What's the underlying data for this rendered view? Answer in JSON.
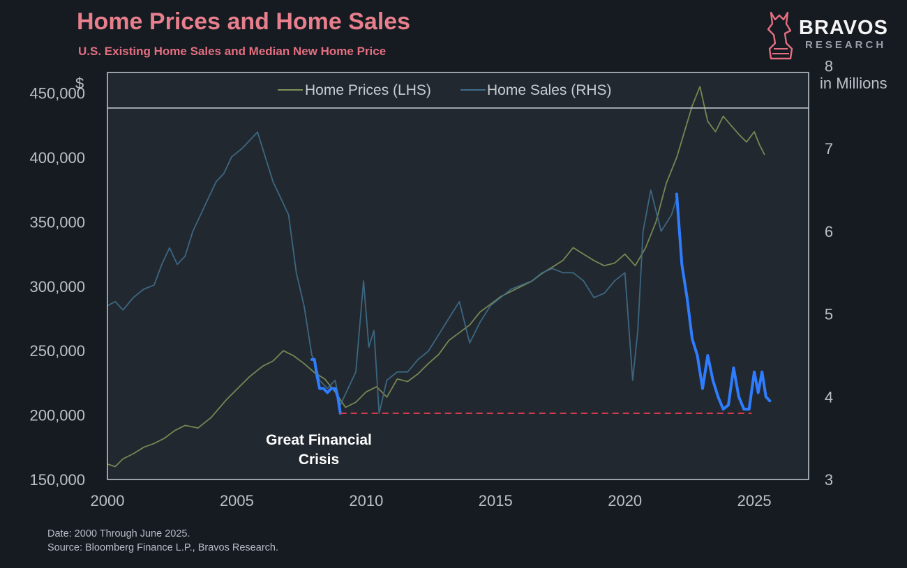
{
  "header": {
    "title": "Home Prices and Home Sales",
    "subtitle": "U.S. Existing Home Sales and Median New Home Price"
  },
  "logo": {
    "name": "BRAVOS",
    "sub": "RESEARCH",
    "icon": "bull-knight-icon"
  },
  "footer": {
    "date_note": "Date: 2000 Through June 2025.",
    "source_note": "Source: Bloomberg Finance L.P., Bravos Research."
  },
  "colors": {
    "background": "#161a21",
    "plot_bg": "#222830",
    "frame": "#c7ccd2",
    "axis_text": "#bcc1c8",
    "title": "#e77f8c",
    "prices": "#7f9156",
    "sales": "#3f6e8a",
    "highlight": "#2f7dff",
    "dashed": "#d23a4e"
  },
  "chart_data": {
    "type": "line",
    "title": "Home Prices and Home Sales",
    "subtitle": "U.S. Existing Home Sales and Median New Home Price",
    "left_axis": {
      "label": "$",
      "min": 150000,
      "max": 466000,
      "ticks": [
        "150,000",
        "200,000",
        "250,000",
        "300,000",
        "350,000",
        "400,000",
        "450,000"
      ],
      "tick_values": [
        150000,
        200000,
        250000,
        300000,
        350000,
        400000,
        450000
      ]
    },
    "right_axis": {
      "label": "in Millions",
      "min": 3,
      "max": 7.92,
      "ticks": [
        "3",
        "4",
        "5",
        "6",
        "7",
        "8"
      ],
      "tick_values": [
        3,
        4,
        5,
        6,
        7,
        8
      ]
    },
    "x_axis": {
      "min": 2000,
      "max": 2027.1,
      "ticks": [
        "2000",
        "2005",
        "2010",
        "2015",
        "2020",
        "2025"
      ],
      "tick_values": [
        2000,
        2005,
        2010,
        2015,
        2020,
        2025
      ]
    },
    "legend": {
      "position": "top-center",
      "items": [
        "Home Prices (LHS)",
        "Home Sales (RHS)"
      ]
    },
    "series": [
      {
        "name": "Home Prices (LHS)",
        "axis": "left",
        "points": [
          [
            2000.0,
            162000
          ],
          [
            2000.3,
            160000
          ],
          [
            2000.6,
            166000
          ],
          [
            2001.0,
            170000
          ],
          [
            2001.4,
            175000
          ],
          [
            2001.8,
            178000
          ],
          [
            2002.2,
            182000
          ],
          [
            2002.6,
            188000
          ],
          [
            2003.0,
            192000
          ],
          [
            2003.5,
            190000
          ],
          [
            2004.0,
            198000
          ],
          [
            2004.3,
            205000
          ],
          [
            2004.6,
            212000
          ],
          [
            2005.0,
            220000
          ],
          [
            2005.5,
            230000
          ],
          [
            2006.0,
            238000
          ],
          [
            2006.4,
            242000
          ],
          [
            2006.8,
            250000
          ],
          [
            2007.2,
            246000
          ],
          [
            2007.6,
            240000
          ],
          [
            2008.0,
            233000
          ],
          [
            2008.4,
            228000
          ],
          [
            2008.8,
            218000
          ],
          [
            2009.2,
            206000
          ],
          [
            2009.6,
            210000
          ],
          [
            2010.0,
            218000
          ],
          [
            2010.4,
            222000
          ],
          [
            2010.8,
            214000
          ],
          [
            2011.2,
            228000
          ],
          [
            2011.6,
            226000
          ],
          [
            2012.0,
            232000
          ],
          [
            2012.4,
            240000
          ],
          [
            2012.8,
            247000
          ],
          [
            2013.2,
            258000
          ],
          [
            2013.6,
            264000
          ],
          [
            2014.0,
            270000
          ],
          [
            2014.4,
            280000
          ],
          [
            2014.8,
            286000
          ],
          [
            2015.2,
            292000
          ],
          [
            2015.6,
            296000
          ],
          [
            2016.0,
            300000
          ],
          [
            2016.4,
            304000
          ],
          [
            2016.8,
            310000
          ],
          [
            2017.2,
            315000
          ],
          [
            2017.6,
            320000
          ],
          [
            2018.0,
            330000
          ],
          [
            2018.4,
            325000
          ],
          [
            2018.8,
            320000
          ],
          [
            2019.2,
            316000
          ],
          [
            2019.6,
            318000
          ],
          [
            2020.0,
            325000
          ],
          [
            2020.4,
            316000
          ],
          [
            2020.8,
            330000
          ],
          [
            2021.2,
            350000
          ],
          [
            2021.6,
            380000
          ],
          [
            2022.0,
            400000
          ],
          [
            2022.3,
            420000
          ],
          [
            2022.6,
            440000
          ],
          [
            2022.9,
            455000
          ],
          [
            2023.2,
            428000
          ],
          [
            2023.5,
            420000
          ],
          [
            2023.8,
            432000
          ],
          [
            2024.1,
            425000
          ],
          [
            2024.4,
            418000
          ],
          [
            2024.7,
            412000
          ],
          [
            2025.0,
            420000
          ],
          [
            2025.2,
            410000
          ],
          [
            2025.4,
            402000
          ]
        ]
      },
      {
        "name": "Home Sales (RHS)",
        "axis": "right",
        "points": [
          [
            2000.0,
            5.1
          ],
          [
            2000.3,
            5.15
          ],
          [
            2000.6,
            5.05
          ],
          [
            2001.0,
            5.2
          ],
          [
            2001.4,
            5.3
          ],
          [
            2001.8,
            5.35
          ],
          [
            2002.1,
            5.6
          ],
          [
            2002.4,
            5.8
          ],
          [
            2002.7,
            5.6
          ],
          [
            2003.0,
            5.7
          ],
          [
            2003.3,
            6.0
          ],
          [
            2003.6,
            6.2
          ],
          [
            2003.9,
            6.4
          ],
          [
            2004.2,
            6.6
          ],
          [
            2004.5,
            6.7
          ],
          [
            2004.8,
            6.9
          ],
          [
            2005.2,
            7.0
          ],
          [
            2005.5,
            7.1
          ],
          [
            2005.8,
            7.2
          ],
          [
            2006.1,
            6.9
          ],
          [
            2006.4,
            6.6
          ],
          [
            2006.7,
            6.4
          ],
          [
            2007.0,
            6.2
          ],
          [
            2007.3,
            5.5
          ],
          [
            2007.6,
            5.1
          ],
          [
            2007.9,
            4.5
          ],
          [
            2008.0,
            4.45
          ],
          [
            2008.2,
            4.2
          ],
          [
            2008.5,
            4.1
          ],
          [
            2008.8,
            4.2
          ],
          [
            2009.0,
            3.9
          ],
          [
            2009.3,
            4.1
          ],
          [
            2009.6,
            4.3
          ],
          [
            2009.9,
            5.4
          ],
          [
            2010.1,
            4.6
          ],
          [
            2010.3,
            4.8
          ],
          [
            2010.5,
            3.8
          ],
          [
            2010.8,
            4.2
          ],
          [
            2011.2,
            4.3
          ],
          [
            2011.6,
            4.3
          ],
          [
            2012.0,
            4.45
          ],
          [
            2012.4,
            4.55
          ],
          [
            2012.8,
            4.75
          ],
          [
            2013.2,
            4.95
          ],
          [
            2013.6,
            5.15
          ],
          [
            2014.0,
            4.65
          ],
          [
            2014.4,
            4.9
          ],
          [
            2014.8,
            5.1
          ],
          [
            2015.2,
            5.2
          ],
          [
            2015.6,
            5.3
          ],
          [
            2016.0,
            5.35
          ],
          [
            2016.4,
            5.4
          ],
          [
            2016.8,
            5.5
          ],
          [
            2017.2,
            5.55
          ],
          [
            2017.6,
            5.5
          ],
          [
            2018.0,
            5.5
          ],
          [
            2018.4,
            5.4
          ],
          [
            2018.8,
            5.2
          ],
          [
            2019.2,
            5.25
          ],
          [
            2019.6,
            5.4
          ],
          [
            2020.0,
            5.5
          ],
          [
            2020.3,
            4.2
          ],
          [
            2020.5,
            4.8
          ],
          [
            2020.7,
            6.0
          ],
          [
            2021.0,
            6.5
          ],
          [
            2021.4,
            6.0
          ],
          [
            2021.8,
            6.2
          ],
          [
            2022.0,
            6.4
          ]
        ]
      },
      {
        "name": "",
        "axis": "right",
        "points": [
          [
            2007.9,
            4.45
          ],
          [
            2008.0,
            4.45
          ],
          [
            2008.1,
            4.25
          ],
          [
            2008.2,
            4.1
          ],
          [
            2008.35,
            4.1
          ],
          [
            2008.5,
            4.05
          ],
          [
            2008.65,
            4.1
          ],
          [
            2008.8,
            4.1
          ],
          [
            2008.9,
            4.0
          ],
          [
            2009.0,
            3.8
          ],
          [
            2022.0,
            6.45
          ],
          [
            2022.2,
            5.6
          ],
          [
            2022.4,
            5.2
          ],
          [
            2022.6,
            4.7
          ],
          [
            2022.8,
            4.5
          ],
          [
            2023.0,
            4.1
          ],
          [
            2023.2,
            4.5
          ],
          [
            2023.4,
            4.2
          ],
          [
            2023.6,
            4.0
          ],
          [
            2023.8,
            3.85
          ],
          [
            2024.0,
            3.9
          ],
          [
            2024.2,
            4.35
          ],
          [
            2024.4,
            4.0
          ],
          [
            2024.6,
            3.85
          ],
          [
            2024.8,
            3.85
          ],
          [
            2025.0,
            4.3
          ],
          [
            2025.15,
            4.05
          ],
          [
            2025.3,
            4.3
          ],
          [
            2025.45,
            4.0
          ],
          [
            2025.6,
            3.95
          ]
        ]
      }
    ],
    "reference_line": {
      "value": 3.8,
      "axis": "right",
      "style": "dashed",
      "x_range": [
        2009.0,
        2024.9
      ]
    },
    "annotations": [
      {
        "text": "Great Financial\nCrisis"
      }
    ]
  }
}
